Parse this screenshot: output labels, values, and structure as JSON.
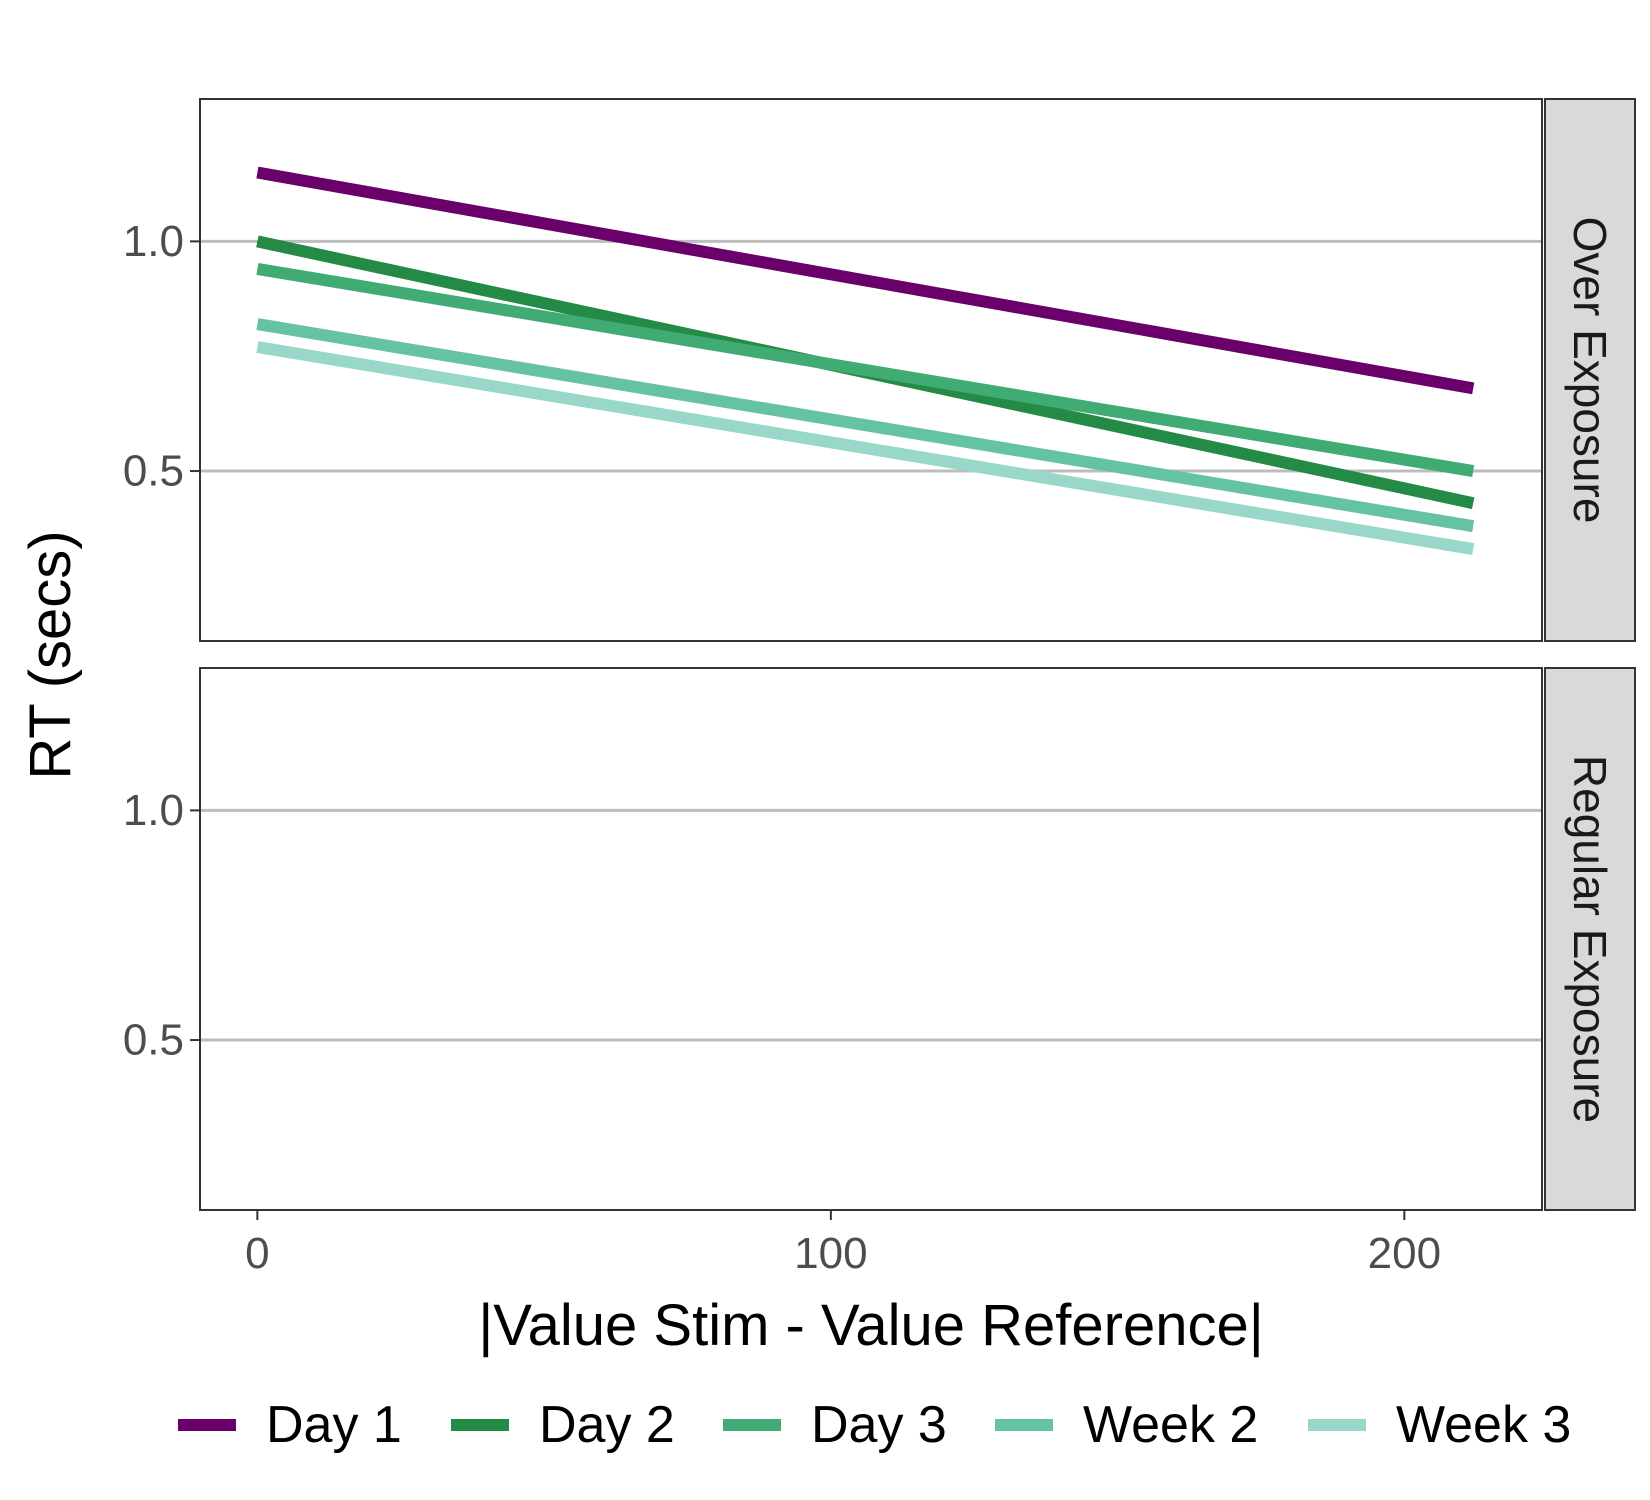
{
  "chart_data": {
    "type": "line",
    "xlabel": "|Value Stim - Value Reference|",
    "ylabel": "RT (secs)",
    "xlim": [
      -10,
      224
    ],
    "ylim": [
      0.13,
      1.31
    ],
    "x_ticks": [
      0,
      100,
      200
    ],
    "y_ticks": [
      0.5,
      1.0
    ],
    "x_tick_labels": [
      "0",
      "100",
      "200"
    ],
    "y_tick_labels": [
      "0.5",
      "1.0"
    ],
    "grid": "major-y",
    "legend_position": "bottom",
    "panels": [
      {
        "label": "Over Exposure",
        "series": [
          {
            "name": "Day 1",
            "color": "#6a006a",
            "x": [
              0,
              212
            ],
            "y": [
              1.15,
              0.68
            ]
          },
          {
            "name": "Day 2",
            "color": "#238b45",
            "x": [
              0,
              212
            ],
            "y": [
              1.0,
              0.43
            ]
          },
          {
            "name": "Day 3",
            "color": "#41ab74",
            "x": [
              0,
              212
            ],
            "y": [
              0.94,
              0.5
            ]
          },
          {
            "name": "Week 2",
            "color": "#66c2a4",
            "x": [
              0,
              212
            ],
            "y": [
              0.82,
              0.38
            ]
          },
          {
            "name": "Week 3",
            "color": "#99d8c9",
            "x": [
              0,
              212
            ],
            "y": [
              0.77,
              0.33
            ]
          }
        ]
      },
      {
        "label": "Regular Exposure",
        "series": []
      }
    ],
    "legend": [
      {
        "name": "Day 1",
        "color": "#6a006a"
      },
      {
        "name": "Day 2",
        "color": "#238b45"
      },
      {
        "name": "Day 3",
        "color": "#41ab74"
      },
      {
        "name": "Week 2",
        "color": "#66c2a4"
      },
      {
        "name": "Week 3",
        "color": "#99d8c9"
      }
    ]
  }
}
